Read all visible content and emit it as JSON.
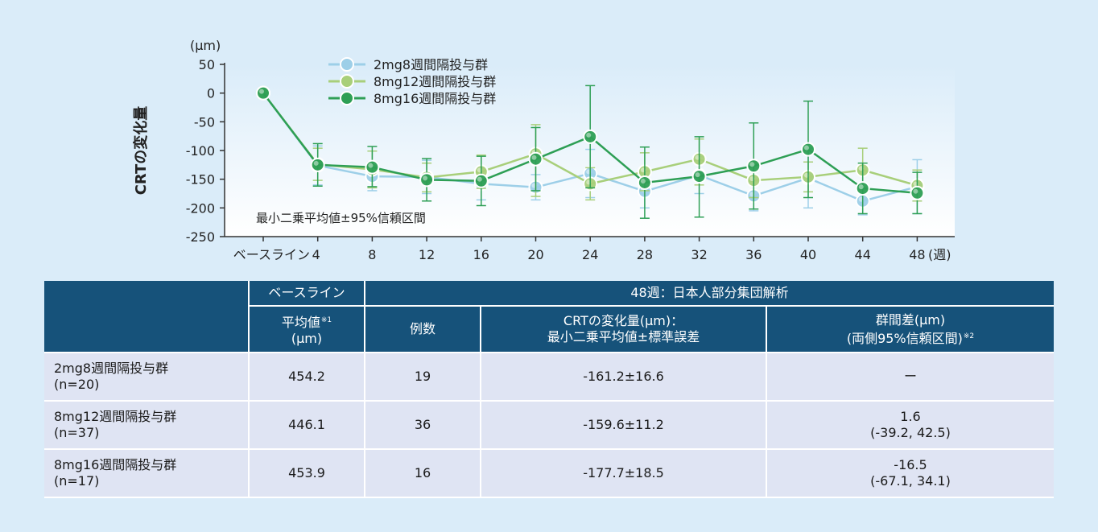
{
  "chart_data": {
    "type": "line",
    "yunit": "(μm)",
    "ylabel": "CRTの変化量",
    "ylim": [
      -250,
      50
    ],
    "yticks": [
      50,
      0,
      -50,
      -100,
      -150,
      -200,
      -250
    ],
    "categories": [
      "ベースライン",
      "4",
      "8",
      "12",
      "16",
      "20",
      "24",
      "28",
      "32",
      "36",
      "40",
      "44",
      "48"
    ],
    "xunit": "(週)",
    "note": "最小二乗平均値±95%信頼区間",
    "legend_position": "top-center",
    "series": [
      {
        "name": "2mg8週間隔投与群",
        "color": "#9dcfe8",
        "values": [
          0,
          -126,
          -145,
          -146,
          -158,
          -164,
          -140,
          -171,
          -143,
          -179,
          -148,
          -188,
          -163
        ],
        "lower": [
          0,
          -160,
          -170,
          -175,
          -186,
          -186,
          -182,
          -200,
          -175,
          -205,
          -200,
          -212,
          -210
        ],
        "upper": [
          0,
          -92,
          -120,
          -117,
          -130,
          -142,
          -98,
          -142,
          -111,
          -153,
          -96,
          -164,
          -116
        ]
      },
      {
        "name": "8mg12週間隔投与群",
        "color": "#a8cf7a",
        "values": [
          0,
          -124,
          -133,
          -147,
          -137,
          -106,
          -158,
          -137,
          -115,
          -152,
          -146,
          -134,
          -161
        ],
        "lower": [
          0,
          -152,
          -165,
          -172,
          -166,
          -180,
          -186,
          -170,
          -160,
          -182,
          -172,
          -165,
          -188
        ],
        "upper": [
          0,
          -96,
          -101,
          -122,
          -108,
          -55,
          -130,
          -104,
          -80,
          -122,
          -120,
          -96,
          -134
        ]
      },
      {
        "name": "8mg16週間隔投与群",
        "color": "#2e9f55",
        "values": [
          0,
          -125,
          -129,
          -151,
          -153,
          -115,
          -76,
          -156,
          -145,
          -127,
          -98,
          -166,
          -174
        ],
        "lower": [
          0,
          -162,
          -163,
          -188,
          -196,
          -170,
          -165,
          -218,
          -216,
          -202,
          -182,
          -210,
          -210
        ],
        "upper": [
          0,
          -88,
          -93,
          -114,
          -110,
          -60,
          13,
          -94,
          -76,
          -52,
          -14,
          -122,
          -138
        ]
      }
    ]
  },
  "table": {
    "header_baseline": "ベースライン",
    "header_week48": "48週：日本人部分集団解析",
    "col_mean": "平均値",
    "col_mean_sup": "※1",
    "col_mean_unit": "(μm)",
    "col_n": "例数",
    "col_crt_line1": "CRTの変化量(μm)：",
    "col_crt_line2": "最小二乗平均値±標準誤差",
    "col_diff_line1": "群間差(μm)",
    "col_diff_line2": "(両側95%信頼区間)",
    "col_diff_sup": "※2",
    "rows": [
      {
        "group": "2mg8週間隔投与群",
        "n_label": "(n=20)",
        "mean": "454.2",
        "n": "19",
        "crt": "-161.2±16.6",
        "diff": "ー",
        "ci": ""
      },
      {
        "group": "8mg12週間隔投与群",
        "n_label": "(n=37)",
        "mean": "446.1",
        "n": "36",
        "crt": "-159.6±11.2",
        "diff": "1.6",
        "ci": "(-39.2, 42.5)"
      },
      {
        "group": "8mg16週間隔投与群",
        "n_label": "(n=17)",
        "mean": "453.9",
        "n": "16",
        "crt": "-177.7±18.5",
        "diff": "-16.5",
        "ci": "(-67.1, 34.1)"
      }
    ]
  }
}
